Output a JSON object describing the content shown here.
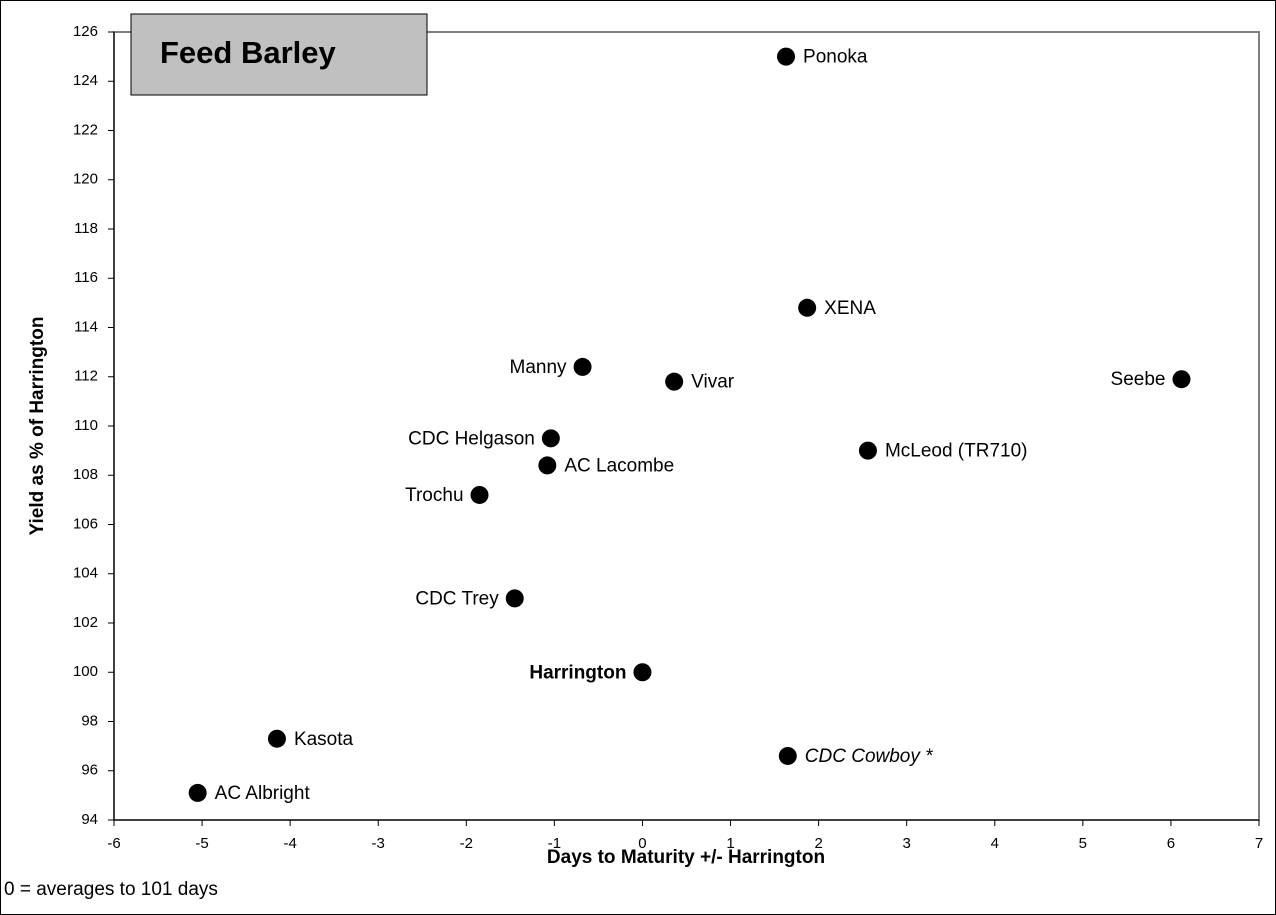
{
  "chart_data": {
    "type": "scatter",
    "title": "Feed Barley",
    "xlabel": "Days to Maturity +/- Harrington",
    "ylabel": "Yield as % of Harrington",
    "footnote": "0 = averages to 101 days",
    "color": "#000000",
    "labels": [
      "Ponoka",
      "XENA",
      "Manny",
      "Vivar",
      "Seebe",
      "CDC Helgason",
      "AC Lacombe",
      "McLeod (TR710)",
      "Trochu",
      "CDC Trey",
      "Harrington",
      "Kasota",
      "CDC Cowboy *",
      "AC Albright"
    ],
    "label_side": [
      "right",
      "right",
      "left",
      "right",
      "left",
      "left",
      "right",
      "right",
      "left",
      "left",
      "left",
      "right",
      "right",
      "right"
    ],
    "label_style": [
      "normal",
      "normal",
      "normal",
      "normal",
      "normal",
      "normal",
      "normal",
      "normal",
      "normal",
      "normal",
      "bold",
      "normal",
      "italic",
      "normal"
    ],
    "x": [
      1.63,
      1.87,
      -0.68,
      0.36,
      6.12,
      -1.04,
      -1.08,
      2.56,
      -1.85,
      -1.45,
      0,
      -4.15,
      1.65,
      -5.05
    ],
    "values": [
      125,
      114.8,
      112.4,
      111.8,
      111.9,
      109.5,
      108.4,
      109.0,
      107.2,
      103.0,
      100,
      97.3,
      96.6,
      95.1
    ],
    "xlim": [
      -6,
      7
    ],
    "ylim": [
      94,
      126
    ],
    "xticks": [
      -6,
      -5,
      -4,
      -3,
      -2,
      -1,
      0,
      1,
      2,
      3,
      4,
      5,
      6,
      7
    ],
    "yticks": [
      94,
      96,
      98,
      100,
      102,
      104,
      106,
      108,
      110,
      112,
      114,
      116,
      118,
      120,
      122,
      124,
      126
    ]
  }
}
